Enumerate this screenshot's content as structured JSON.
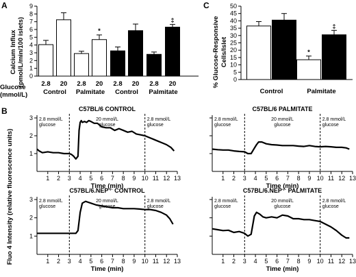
{
  "panels": {
    "a": "A",
    "b": "B",
    "c": "C"
  },
  "glucose_label": "Glucose",
  "glucose_unit": "(mmol/L)",
  "chart_data": [
    {
      "type": "bar",
      "ylabel_lines": [
        "Calcium Influx",
        "(pmol/L/min/100 islets)"
      ],
      "ylim": [
        0,
        9
      ],
      "yticks": [
        "0",
        "1",
        "2",
        "3",
        "4",
        "5",
        "6",
        "7",
        "8",
        "9"
      ],
      "categories": [
        "2.8",
        "20",
        "2.8",
        "20",
        "2.8",
        "20",
        "2.8",
        "20"
      ],
      "groups": [
        "Control",
        "Palmitate",
        "Control",
        "Palmitate"
      ],
      "values": [
        4.05,
        7.25,
        2.9,
        4.7,
        3.25,
        5.85,
        2.8,
        6.3
      ],
      "errors": [
        0.55,
        0.9,
        0.3,
        0.6,
        0.5,
        0.85,
        0.3,
        0.35
      ],
      "fills": [
        "#ffffff",
        "#ffffff",
        "#ffffff",
        "#ffffff",
        "#000000",
        "#000000",
        "#000000",
        "#000000"
      ],
      "annotations": [
        "",
        "",
        "",
        "*",
        "",
        "",
        "",
        "‡"
      ]
    },
    {
      "type": "bar",
      "ylabel_lines": [
        "% Glucose-Responsive",
        "Cells/Islet"
      ],
      "ylim": [
        0,
        50
      ],
      "yticks": [
        "0",
        "5",
        "10",
        "15",
        "20",
        "25",
        "30",
        "35",
        "40",
        "45",
        "50"
      ],
      "groups": [
        "Control",
        "Palmitate"
      ],
      "values": [
        36.5,
        40.5,
        13.5,
        30.5
      ],
      "errors": [
        3,
        4.5,
        2.5,
        3
      ],
      "fills": [
        "#ffffff",
        "#000000",
        "#ffffff",
        "#000000"
      ],
      "annotations": [
        "",
        "",
        "*",
        "‡"
      ]
    },
    {
      "type": "line",
      "title_html": "C57BL/6 CONTROL",
      "title_parts": [
        "C57BL/6 CONTROL"
      ],
      "xlabel": "Time (min)",
      "xlim": [
        0,
        13
      ],
      "xticks": [
        "1",
        "2",
        "3",
        "4",
        "5",
        "6",
        "7",
        "8",
        "9",
        "10",
        "11",
        "12",
        "13"
      ],
      "phases": [
        [
          "2.8 mmol/L",
          "glucose"
        ],
        [
          "20 mmol/L",
          "glucose"
        ],
        [
          "2.8 mmol/L",
          "glucose"
        ]
      ],
      "x": [
        0,
        0.2,
        0.5,
        1,
        1.5,
        2,
        2.5,
        3,
        3.2,
        3.4,
        3.6,
        3.8,
        3.9,
        4,
        4.1,
        4.2,
        4.4,
        4.6,
        4.8,
        5,
        5.3,
        5.6,
        6,
        6.4,
        6.8,
        7.2,
        7.6,
        8,
        8.4,
        8.8,
        9.2,
        9.6,
        10,
        10.4,
        10.8,
        11.2,
        11.6,
        12,
        12.4,
        12.7
      ],
      "y": [
        1.25,
        1.15,
        1.05,
        1.1,
        1.05,
        1.05,
        1.0,
        1.0,
        0.95,
        0.85,
        0.7,
        0.85,
        2.3,
        2.75,
        2.85,
        2.75,
        2.8,
        2.75,
        2.85,
        2.8,
        2.7,
        2.7,
        2.5,
        2.45,
        2.45,
        2.3,
        2.4,
        2.3,
        2.2,
        2.25,
        2.1,
        2.05,
        2.0,
        1.9,
        1.8,
        1.7,
        1.6,
        1.5,
        1.35,
        1.15
      ]
    },
    {
      "type": "line",
      "title_parts": [
        "C57BL/6 PALMITATE"
      ],
      "xlabel": "Time (min)",
      "xlim": [
        0,
        13
      ],
      "xticks": [
        "1",
        "2",
        "3",
        "4",
        "5",
        "6",
        "7",
        "8",
        "9",
        "10",
        "11",
        "12",
        "13"
      ],
      "phases": [
        [
          "2.8 mmol/L",
          "glucose"
        ],
        [
          "20 mmol/L",
          "glucose"
        ],
        [
          "2.8 mmol/L",
          "glucose"
        ]
      ],
      "x": [
        0,
        0.5,
        1,
        1.5,
        2,
        2.5,
        3,
        3.3,
        3.6,
        3.9,
        4.1,
        4.3,
        4.6,
        5,
        5.5,
        6,
        6.5,
        7,
        7.5,
        8,
        8.5,
        9,
        9.5,
        10,
        10.5,
        11,
        11.5,
        12,
        12.4,
        12.7
      ],
      "y": [
        1.25,
        1.22,
        1.2,
        1.2,
        1.15,
        1.12,
        1.1,
        1.0,
        1.0,
        1.3,
        1.5,
        1.65,
        1.65,
        1.55,
        1.5,
        1.48,
        1.45,
        1.45,
        1.45,
        1.42,
        1.4,
        1.45,
        1.4,
        1.38,
        1.4,
        1.38,
        1.35,
        1.35,
        1.32,
        1.25
      ]
    },
    {
      "type": "line",
      "title_parts": [
        "C57BL/6.NEP",
        "-/-",
        "  CONTROL"
      ],
      "xlabel": "Time (min)",
      "xlim": [
        0,
        13
      ],
      "xticks": [
        "1",
        "2",
        "3",
        "4",
        "5",
        "6",
        "7",
        "8",
        "9",
        "10",
        "11",
        "12",
        "13"
      ],
      "phases": [
        [
          "2.8 mmol/L",
          "glucose"
        ],
        [
          "20 mmol/L",
          "glucose"
        ],
        [
          "2.8 mmol/L",
          "glucose"
        ]
      ],
      "x": [
        0,
        0.5,
        1,
        1.5,
        2,
        2.5,
        3,
        3.3,
        3.6,
        3.8,
        4,
        4.2,
        4.5,
        5,
        5.5,
        6,
        6.5,
        7,
        7.5,
        8,
        8.5,
        9,
        9.5,
        10,
        10.5,
        11,
        11.5,
        12,
        12.3,
        12.6
      ],
      "y": [
        1.15,
        1.15,
        1.15,
        1.15,
        1.15,
        1.15,
        1.15,
        1.15,
        1.15,
        1.3,
        2.3,
        2.8,
        2.9,
        2.8,
        2.7,
        2.65,
        2.6,
        2.55,
        2.55,
        2.5,
        2.5,
        2.5,
        2.48,
        2.45,
        2.45,
        2.4,
        2.3,
        2.15,
        1.95,
        1.65
      ]
    },
    {
      "type": "line",
      "title_parts": [
        "C57BL/6.NEP",
        "-/-",
        "  PALMITATE"
      ],
      "xlabel": "Time (min)",
      "xlim": [
        0,
        13
      ],
      "xticks": [
        "1",
        "2",
        "3",
        "4",
        "5",
        "6",
        "7",
        "8",
        "9",
        "10",
        "11",
        "12",
        "13"
      ],
      "phases": [
        [
          "2.8 mmol/L",
          "glucose"
        ],
        [
          "20 mmol/L",
          "glucose"
        ],
        [
          "2.8 mmol/L",
          "glucose"
        ]
      ],
      "x": [
        0,
        0.5,
        1,
        1.5,
        2,
        2.5,
        3,
        3.3,
        3.6,
        3.9,
        4.1,
        4.4,
        4.7,
        5,
        5.5,
        6,
        6.5,
        7,
        7.5,
        8,
        8.5,
        9,
        9.5,
        10,
        10.5,
        11,
        11.5,
        12,
        12.4,
        12.7
      ],
      "y": [
        1.4,
        1.35,
        1.3,
        1.32,
        1.2,
        1.25,
        1.15,
        1.0,
        1.1,
        2.1,
        2.3,
        2.2,
        2.05,
        2.0,
        2.05,
        2.0,
        2.15,
        2.1,
        1.95,
        1.95,
        1.9,
        1.9,
        1.85,
        1.8,
        1.65,
        1.5,
        1.3,
        1.05,
        0.9,
        0.9
      ]
    }
  ],
  "b_ylabel": "Fluo 4 Intensity (relative fluorescence units)",
  "b_ylim": [
    0,
    3
  ],
  "b_yticks": [
    "1",
    "2",
    "3"
  ]
}
